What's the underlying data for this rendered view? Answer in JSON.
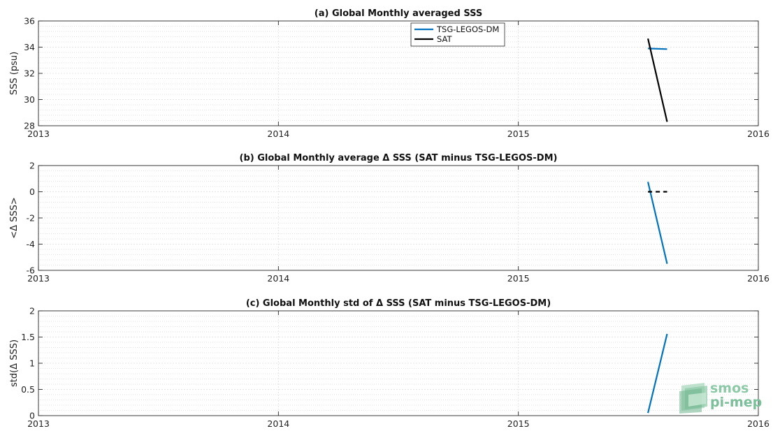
{
  "chart_data": [
    {
      "type": "line",
      "title": "(a) Global Monthly averaged SSS",
      "ylabel": "SSS (psu)",
      "xlabel": "",
      "xlim": [
        2013,
        2016
      ],
      "ylim": [
        28,
        36
      ],
      "xticks": [
        "2013",
        "2014",
        "2015",
        "2016"
      ],
      "yticks": [
        "28",
        "30",
        "32",
        "34",
        "36"
      ],
      "grid": true,
      "legend_position": "top-center",
      "series": [
        {
          "name": "TSG-LEGOS-DM",
          "color": "#0072bd",
          "style": "solid",
          "x": [
            2015.54,
            2015.62
          ],
          "y": [
            33.9,
            33.85
          ]
        },
        {
          "name": "SAT",
          "color": "#000000",
          "style": "solid",
          "x": [
            2015.54,
            2015.62
          ],
          "y": [
            34.65,
            28.3
          ]
        }
      ]
    },
    {
      "type": "line",
      "title": "(b) Global Monthly average Δ SSS (SAT minus TSG-LEGOS-DM)",
      "ylabel": "<Δ SSS>",
      "xlabel": "",
      "xlim": [
        2013,
        2016
      ],
      "ylim": [
        -6,
        2
      ],
      "xticks": [
        "2013",
        "2014",
        "2015",
        "2016"
      ],
      "yticks": [
        "-6",
        "-4",
        "-2",
        "0",
        "2"
      ],
      "grid": true,
      "series": [
        {
          "name": "",
          "color": "#0072bd",
          "style": "solid",
          "x": [
            2015.54,
            2015.62
          ],
          "y": [
            0.75,
            -5.5
          ]
        },
        {
          "name": "",
          "color": "#000000",
          "style": "dashed",
          "x": [
            2015.54,
            2015.62
          ],
          "y": [
            0.0,
            0.0
          ]
        }
      ]
    },
    {
      "type": "line",
      "title": "(c) Global Monthly std of Δ SSS (SAT minus TSG-LEGOS-DM)",
      "ylabel": "std(Δ SSS)",
      "xlabel": "",
      "xlim": [
        2013,
        2016
      ],
      "ylim": [
        0,
        2
      ],
      "xticks": [
        "2013",
        "2014",
        "2015",
        "2016"
      ],
      "yticks": [
        "0",
        "0.5",
        "1",
        "1.5",
        "2"
      ],
      "grid": true,
      "series": [
        {
          "name": "",
          "color": "#0072bd",
          "style": "solid",
          "x": [
            2015.54,
            2015.62
          ],
          "y": [
            0.05,
            1.56
          ]
        }
      ]
    }
  ],
  "watermark": {
    "line1": "smos",
    "line2": "pi-mep"
  }
}
